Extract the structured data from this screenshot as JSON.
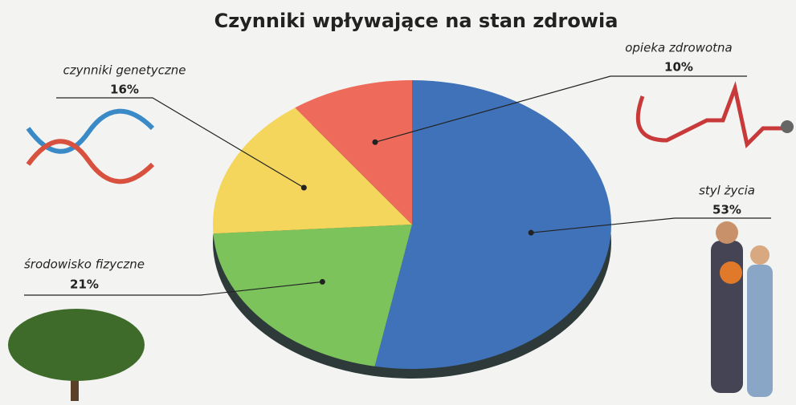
{
  "chart_data": {
    "type": "pie",
    "title": "Czynniki wpływające na stan zdrowia",
    "categories": [
      "styl życia",
      "środowisko fizyczne",
      "czynniki genetyczne",
      "opieka zdrowotna"
    ],
    "values": [
      53,
      21,
      16,
      10
    ],
    "value_labels": [
      "53%",
      "21%",
      "16%",
      "10%"
    ],
    "colors": [
      "#3f72b8",
      "#7cc35c",
      "#f4d65c",
      "#ee6b5b"
    ]
  }
}
